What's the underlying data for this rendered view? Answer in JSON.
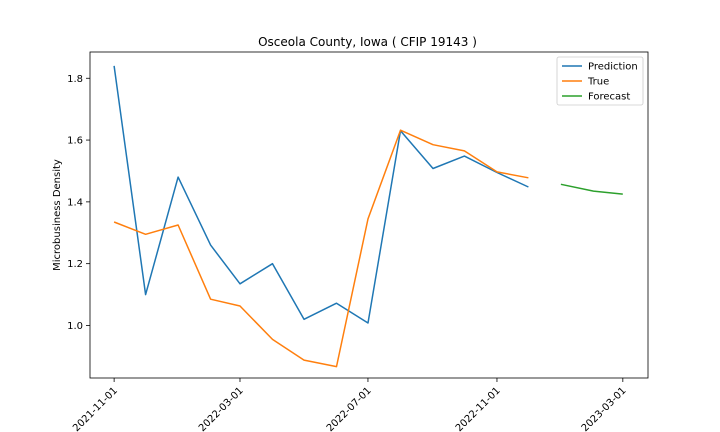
{
  "chart_data": {
    "type": "line",
    "title": "Osceola County, Iowa ( CFIP 19143 )",
    "xlabel": "",
    "ylabel": "Microbusiness Density",
    "ylim": [
      0.83,
      1.885
    ],
    "xlim": [
      "2021-10-09",
      "2023-03-25"
    ],
    "x_ticks": [
      "2021-11-01",
      "2022-03-01",
      "2022-07-01",
      "2022-11-01",
      "2023-03-01"
    ],
    "y_ticks": [
      "1.0",
      "1.2",
      "1.4",
      "1.6",
      "1.8"
    ],
    "y_tick_values": [
      1.0,
      1.2,
      1.4,
      1.6,
      1.8
    ],
    "grid": false,
    "legend_position": "top-right",
    "series": [
      {
        "name": "Prediction",
        "color": "#1f77b4",
        "x": [
          "2021-11-01",
          "2021-12-01",
          "2022-01-01",
          "2022-02-01",
          "2022-03-01",
          "2022-04-01",
          "2022-05-01",
          "2022-06-01",
          "2022-07-01",
          "2022-08-01",
          "2022-09-01",
          "2022-10-01",
          "2022-11-01",
          "2022-12-01"
        ],
        "values": [
          1.84,
          1.1,
          1.48,
          1.26,
          1.135,
          1.2,
          1.02,
          1.072,
          1.008,
          1.63,
          1.508,
          1.548,
          1.495,
          1.448
        ]
      },
      {
        "name": "True",
        "color": "#ff7f0e",
        "x": [
          "2021-11-01",
          "2021-12-01",
          "2022-01-01",
          "2022-02-01",
          "2022-03-01",
          "2022-04-01",
          "2022-05-01",
          "2022-06-01",
          "2022-07-01",
          "2022-08-01",
          "2022-09-01",
          "2022-10-01",
          "2022-11-01",
          "2022-12-01"
        ],
        "values": [
          1.335,
          1.295,
          1.325,
          1.085,
          1.063,
          0.955,
          0.888,
          0.867,
          1.345,
          1.632,
          1.585,
          1.565,
          1.497,
          1.478
        ]
      },
      {
        "name": "Forecast",
        "color": "#2ca02c",
        "x": [
          "2023-01-01",
          "2023-02-01",
          "2023-03-01"
        ],
        "values": [
          1.457,
          1.435,
          1.425
        ]
      }
    ]
  }
}
